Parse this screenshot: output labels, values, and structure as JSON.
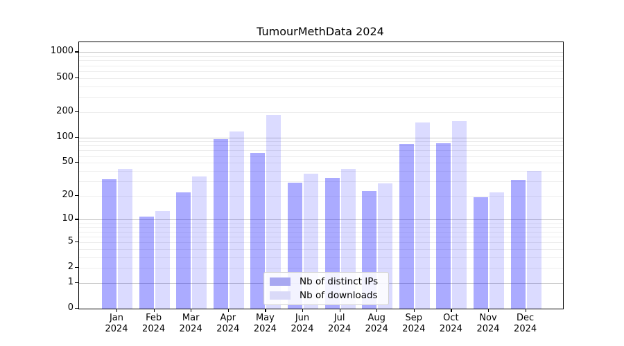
{
  "chart_data": {
    "type": "bar",
    "title": "TumourMethData 2024",
    "xlabel": "",
    "ylabel": "",
    "scale": "log1p-symlog-like",
    "ylim": [
      0,
      1290
    ],
    "grid": "horizontal major and minor gridlines on",
    "legend_position": "lower center inside plot",
    "yticks": [
      0,
      1,
      2,
      5,
      10,
      20,
      50,
      100,
      200,
      500,
      1000
    ],
    "categories": [
      [
        "Jan",
        "2024"
      ],
      [
        "Feb",
        "2024"
      ],
      [
        "Mar",
        "2024"
      ],
      [
        "Apr",
        "2024"
      ],
      [
        "May",
        "2024"
      ],
      [
        "Jun",
        "2024"
      ],
      [
        "Jul",
        "2024"
      ],
      [
        "Aug",
        "2024"
      ],
      [
        "Sep",
        "2024"
      ],
      [
        "Oct",
        "2024"
      ],
      [
        "Nov",
        "2024"
      ],
      [
        "Dec",
        "2024"
      ]
    ],
    "series": [
      {
        "name": "Nb of distinct IPs",
        "color": "#0000ff54",
        "legend_color": "#a8a8f1",
        "values": [
          32,
          11,
          22,
          95,
          65,
          29,
          33,
          23,
          84,
          86,
          19,
          31
        ]
      },
      {
        "name": "Nb of downloads",
        "color": "#0000ff24",
        "legend_color": "#dadaf8",
        "values": [
          42,
          13,
          34,
          117,
          183,
          37,
          42,
          28,
          150,
          156,
          22,
          40
        ]
      }
    ],
    "colors": {
      "axis": "#000000",
      "grid_major": "#c6c6c6",
      "grid_minor": "#ededed",
      "background": "#ffffff"
    }
  }
}
